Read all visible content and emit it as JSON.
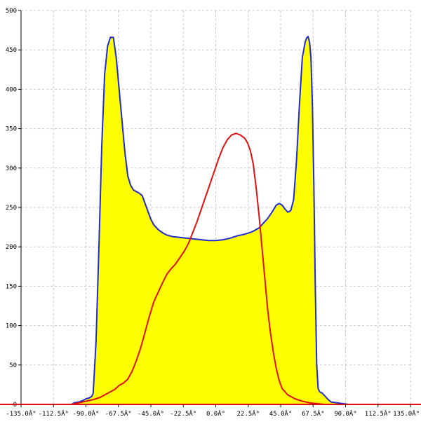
{
  "chart_data": {
    "type": "area",
    "title": "",
    "xlabel": "",
    "ylabel": "",
    "xlim": [
      -135,
      135
    ],
    "ylim": [
      0,
      500
    ],
    "grid": true,
    "x_ticks": [
      -135,
      -112.5,
      -90,
      -67.5,
      -45,
      -22.5,
      0,
      22.5,
      45,
      67.5,
      90,
      112.5,
      135
    ],
    "x_tick_labels": [
      "-135.0Â°",
      "-112.5Â°",
      "-90.0Â°",
      "-67.5Â°",
      "-45.0Â°",
      "-22.5Â°",
      "0.0Â°",
      "22.5Â°",
      "45.0Â°",
      "67.5Â°",
      "90.0Â°",
      "112.5Â°",
      "135.0Â°"
    ],
    "y_ticks": [
      0,
      50,
      100,
      150,
      200,
      250,
      300,
      350,
      400,
      450,
      500
    ],
    "y_tick_labels": [
      "0",
      "50",
      "100",
      "150",
      "200",
      "250",
      "300",
      "350",
      "400",
      "450",
      "500"
    ],
    "series": [
      {
        "color": "#1f2bd0",
        "fill": "#ffff00",
        "points": [
          [
            -100,
            0
          ],
          [
            -98,
            2
          ],
          [
            -95,
            3
          ],
          [
            -92,
            5
          ],
          [
            -90,
            7
          ],
          [
            -88,
            8
          ],
          [
            -86,
            10
          ],
          [
            -85,
            14
          ],
          [
            -83,
            80
          ],
          [
            -81,
            200
          ],
          [
            -79,
            330
          ],
          [
            -77,
            420
          ],
          [
            -75,
            455
          ],
          [
            -73,
            466
          ],
          [
            -71,
            466
          ],
          [
            -69,
            440
          ],
          [
            -67,
            400
          ],
          [
            -65,
            360
          ],
          [
            -63,
            320
          ],
          [
            -61,
            290
          ],
          [
            -59,
            278
          ],
          [
            -57,
            272
          ],
          [
            -55,
            270
          ],
          [
            -53,
            268
          ],
          [
            -51,
            265
          ],
          [
            -49,
            255
          ],
          [
            -47,
            245
          ],
          [
            -45,
            235
          ],
          [
            -43,
            228
          ],
          [
            -40,
            222
          ],
          [
            -37,
            218
          ],
          [
            -34,
            215
          ],
          [
            -30,
            213
          ],
          [
            -25,
            212
          ],
          [
            -20,
            211
          ],
          [
            -15,
            210
          ],
          [
            -10,
            209
          ],
          [
            -5,
            208
          ],
          [
            0,
            208
          ],
          [
            5,
            209
          ],
          [
            10,
            211
          ],
          [
            15,
            214
          ],
          [
            20,
            216
          ],
          [
            25,
            219
          ],
          [
            30,
            224
          ],
          [
            33,
            230
          ],
          [
            36,
            236
          ],
          [
            39,
            244
          ],
          [
            42,
            253
          ],
          [
            44,
            255
          ],
          [
            46,
            253
          ],
          [
            48,
            248
          ],
          [
            50,
            244
          ],
          [
            52,
            246
          ],
          [
            54,
            260
          ],
          [
            56,
            310
          ],
          [
            58,
            380
          ],
          [
            60,
            440
          ],
          [
            62,
            460
          ],
          [
            63,
            465
          ],
          [
            64,
            467
          ],
          [
            65,
            460
          ],
          [
            66,
            440
          ],
          [
            67,
            380
          ],
          [
            68,
            280
          ],
          [
            69,
            150
          ],
          [
            70,
            50
          ],
          [
            71,
            20
          ],
          [
            72,
            16
          ],
          [
            73,
            15
          ],
          [
            74,
            14
          ],
          [
            76,
            10
          ],
          [
            78,
            6
          ],
          [
            80,
            3
          ],
          [
            84,
            2
          ],
          [
            88,
            1
          ],
          [
            92,
            0
          ]
        ]
      },
      {
        "color": "#e01010",
        "fill": "none",
        "points": [
          [
            -100,
            0
          ],
          [
            -95,
            2
          ],
          [
            -90,
            4
          ],
          [
            -85,
            6
          ],
          [
            -80,
            9
          ],
          [
            -75,
            14
          ],
          [
            -70,
            19
          ],
          [
            -67,
            24
          ],
          [
            -64,
            27
          ],
          [
            -61,
            32
          ],
          [
            -58,
            42
          ],
          [
            -55,
            56
          ],
          [
            -52,
            72
          ],
          [
            -49,
            92
          ],
          [
            -46,
            112
          ],
          [
            -43,
            130
          ],
          [
            -40,
            142
          ],
          [
            -37,
            154
          ],
          [
            -34,
            165
          ],
          [
            -31,
            172
          ],
          [
            -28,
            178
          ],
          [
            -25,
            186
          ],
          [
            -22,
            194
          ],
          [
            -19,
            204
          ],
          [
            -16,
            218
          ],
          [
            -13,
            232
          ],
          [
            -10,
            248
          ],
          [
            -7,
            264
          ],
          [
            -4,
            280
          ],
          [
            -1,
            296
          ],
          [
            2,
            312
          ],
          [
            5,
            326
          ],
          [
            8,
            336
          ],
          [
            11,
            342
          ],
          [
            14,
            344
          ],
          [
            17,
            342
          ],
          [
            20,
            338
          ],
          [
            22,
            332
          ],
          [
            24,
            322
          ],
          [
            26,
            305
          ],
          [
            28,
            275
          ],
          [
            30,
            240
          ],
          [
            32,
            200
          ],
          [
            34,
            160
          ],
          [
            36,
            120
          ],
          [
            38,
            90
          ],
          [
            40,
            65
          ],
          [
            42,
            45
          ],
          [
            44,
            30
          ],
          [
            46,
            20
          ],
          [
            50,
            12
          ],
          [
            55,
            7
          ],
          [
            60,
            4
          ],
          [
            65,
            2
          ],
          [
            70,
            1
          ],
          [
            75,
            0
          ],
          [
            135,
            0
          ]
        ]
      }
    ],
    "baseline_color": "#e01010"
  }
}
